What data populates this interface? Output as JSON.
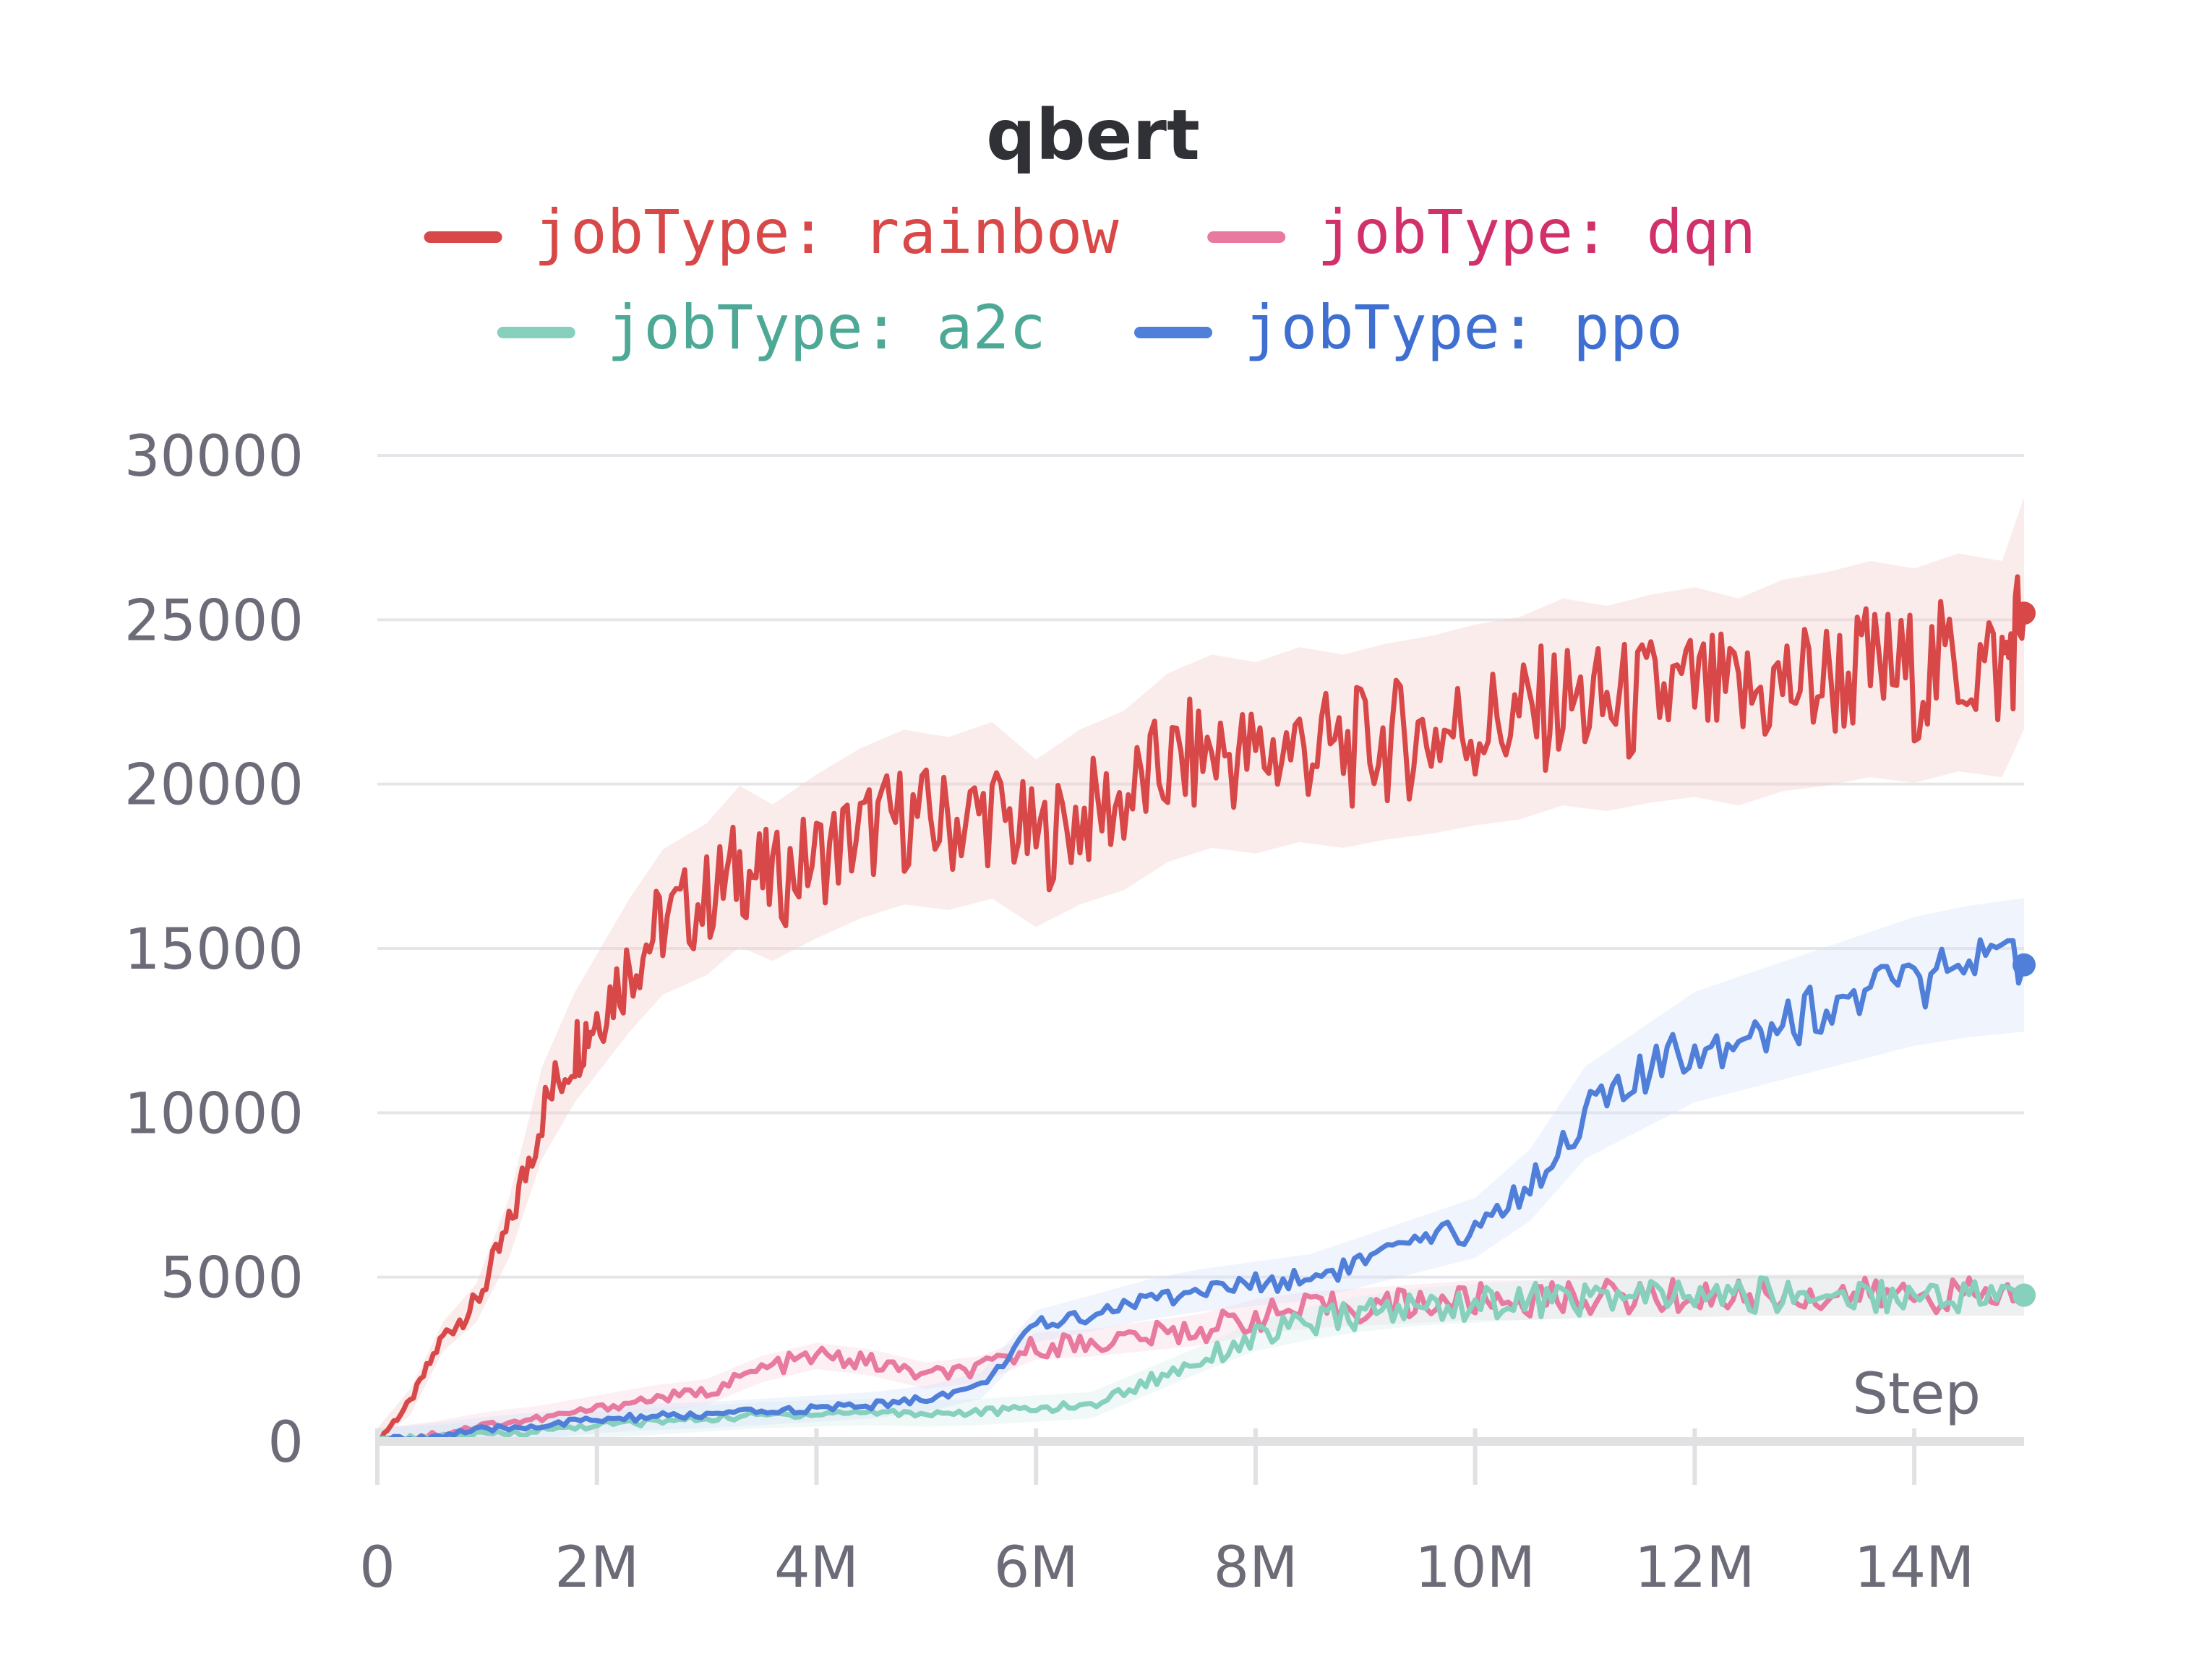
{
  "chart_data": {
    "type": "line",
    "title": "qbert",
    "xlabel": "Step",
    "ylabel": "",
    "xlim": [
      0,
      15000000
    ],
    "ylim": [
      0,
      30000
    ],
    "x_ticks": [
      0,
      2000000,
      4000000,
      6000000,
      8000000,
      10000000,
      12000000,
      14000000
    ],
    "x_tick_labels": [
      "0",
      "2M",
      "4M",
      "6M",
      "8M",
      "10M",
      "12M",
      "14M"
    ],
    "y_ticks": [
      0,
      5000,
      10000,
      15000,
      20000,
      25000,
      30000
    ],
    "y_tick_labels": [
      "0",
      "5000",
      "10000",
      "15000",
      "20000",
      "25000",
      "30000"
    ],
    "grid": true,
    "legend_position": "top",
    "series": [
      {
        "name": "jobType: rainbow",
        "color": "#d94848",
        "band_color": "#f4c8c8",
        "x": [
          0,
          300000,
          600000,
          900000,
          1200000,
          1500000,
          1800000,
          2000000,
          2300000,
          2600000,
          3000000,
          3300000,
          3600000,
          4000000,
          4400000,
          4800000,
          5200000,
          5600000,
          6000000,
          6400000,
          6800000,
          7200000,
          7600000,
          8000000,
          8400000,
          8800000,
          9200000,
          9600000,
          10000000,
          10400000,
          10800000,
          11200000,
          11600000,
          12000000,
          12400000,
          12800000,
          13200000,
          13600000,
          14000000,
          14400000,
          14800000,
          15000000
        ],
        "y": [
          0,
          1200,
          3200,
          4200,
          6500,
          10000,
          12000,
          13000,
          14500,
          15800,
          16500,
          17500,
          17000,
          17800,
          18500,
          19000,
          18800,
          19200,
          18200,
          19000,
          19500,
          20500,
          21000,
          20800,
          21200,
          21000,
          21300,
          21500,
          21800,
          22000,
          22500,
          22300,
          22600,
          22800,
          22500,
          23000,
          23200,
          23500,
          23300,
          23700,
          23500,
          25200
        ]
      },
      {
        "name": "jobType: dqn",
        "color": "#e8799f",
        "band_color": "#f6d3e0",
        "x": [
          0,
          500000,
          1000000,
          1500000,
          2000000,
          2500000,
          3000000,
          3500000,
          4000000,
          4500000,
          5000000,
          5500000,
          6000000,
          6500000,
          7000000,
          7500000,
          8000000,
          8500000,
          9000000,
          9500000,
          10000000,
          10500000,
          11000000,
          11500000,
          12000000,
          12500000,
          13000000,
          13500000,
          14000000,
          14500000,
          15000000
        ],
        "y": [
          0,
          200,
          500,
          700,
          1000,
          1300,
          1500,
          2200,
          2600,
          2400,
          2000,
          2200,
          2900,
          3000,
          3200,
          3400,
          3800,
          4000,
          4100,
          4200,
          4300,
          4300,
          4400,
          4400,
          4400,
          4450,
          4450,
          4450,
          4450,
          4450,
          4450
        ]
      },
      {
        "name": "jobType: a2c",
        "color": "#86d0bd",
        "band_color": "#d3efe7",
        "x": [
          0,
          500000,
          1000000,
          1500000,
          2000000,
          2500000,
          3000000,
          3500000,
          4000000,
          4500000,
          5000000,
          5500000,
          6000000,
          6500000,
          7000000,
          7500000,
          8000000,
          8500000,
          9000000,
          9500000,
          10000000,
          10500000,
          11000000,
          11500000,
          12000000,
          12500000,
          13000000,
          13500000,
          14000000,
          14500000,
          15000000
        ],
        "y": [
          0,
          100,
          200,
          350,
          500,
          600,
          700,
          800,
          850,
          900,
          850,
          900,
          1000,
          1100,
          1800,
          2500,
          3200,
          3600,
          3900,
          4100,
          4200,
          4300,
          4350,
          4400,
          4400,
          4450,
          4450,
          4450,
          4450,
          4450,
          4450
        ]
      },
      {
        "name": "jobType: ppo",
        "color": "#4f7fd9",
        "band_color": "#d3e0f8",
        "x": [
          0,
          500000,
          1000000,
          1500000,
          2000000,
          2500000,
          3000000,
          3500000,
          4000000,
          4500000,
          5000000,
          5500000,
          6000000,
          6500000,
          7000000,
          7500000,
          8000000,
          8500000,
          9000000,
          9500000,
          10000000,
          10500000,
          11000000,
          11500000,
          12000000,
          12500000,
          13000000,
          13500000,
          14000000,
          14500000,
          15000000
        ],
        "y": [
          0,
          150,
          350,
          500,
          650,
          750,
          800,
          900,
          1000,
          1100,
          1300,
          1700,
          3500,
          3900,
          4300,
          4600,
          4800,
          5000,
          5500,
          6000,
          6500,
          7800,
          10000,
          11000,
          12000,
          12500,
          13000,
          13500,
          14000,
          14300,
          14500
        ]
      }
    ]
  }
}
